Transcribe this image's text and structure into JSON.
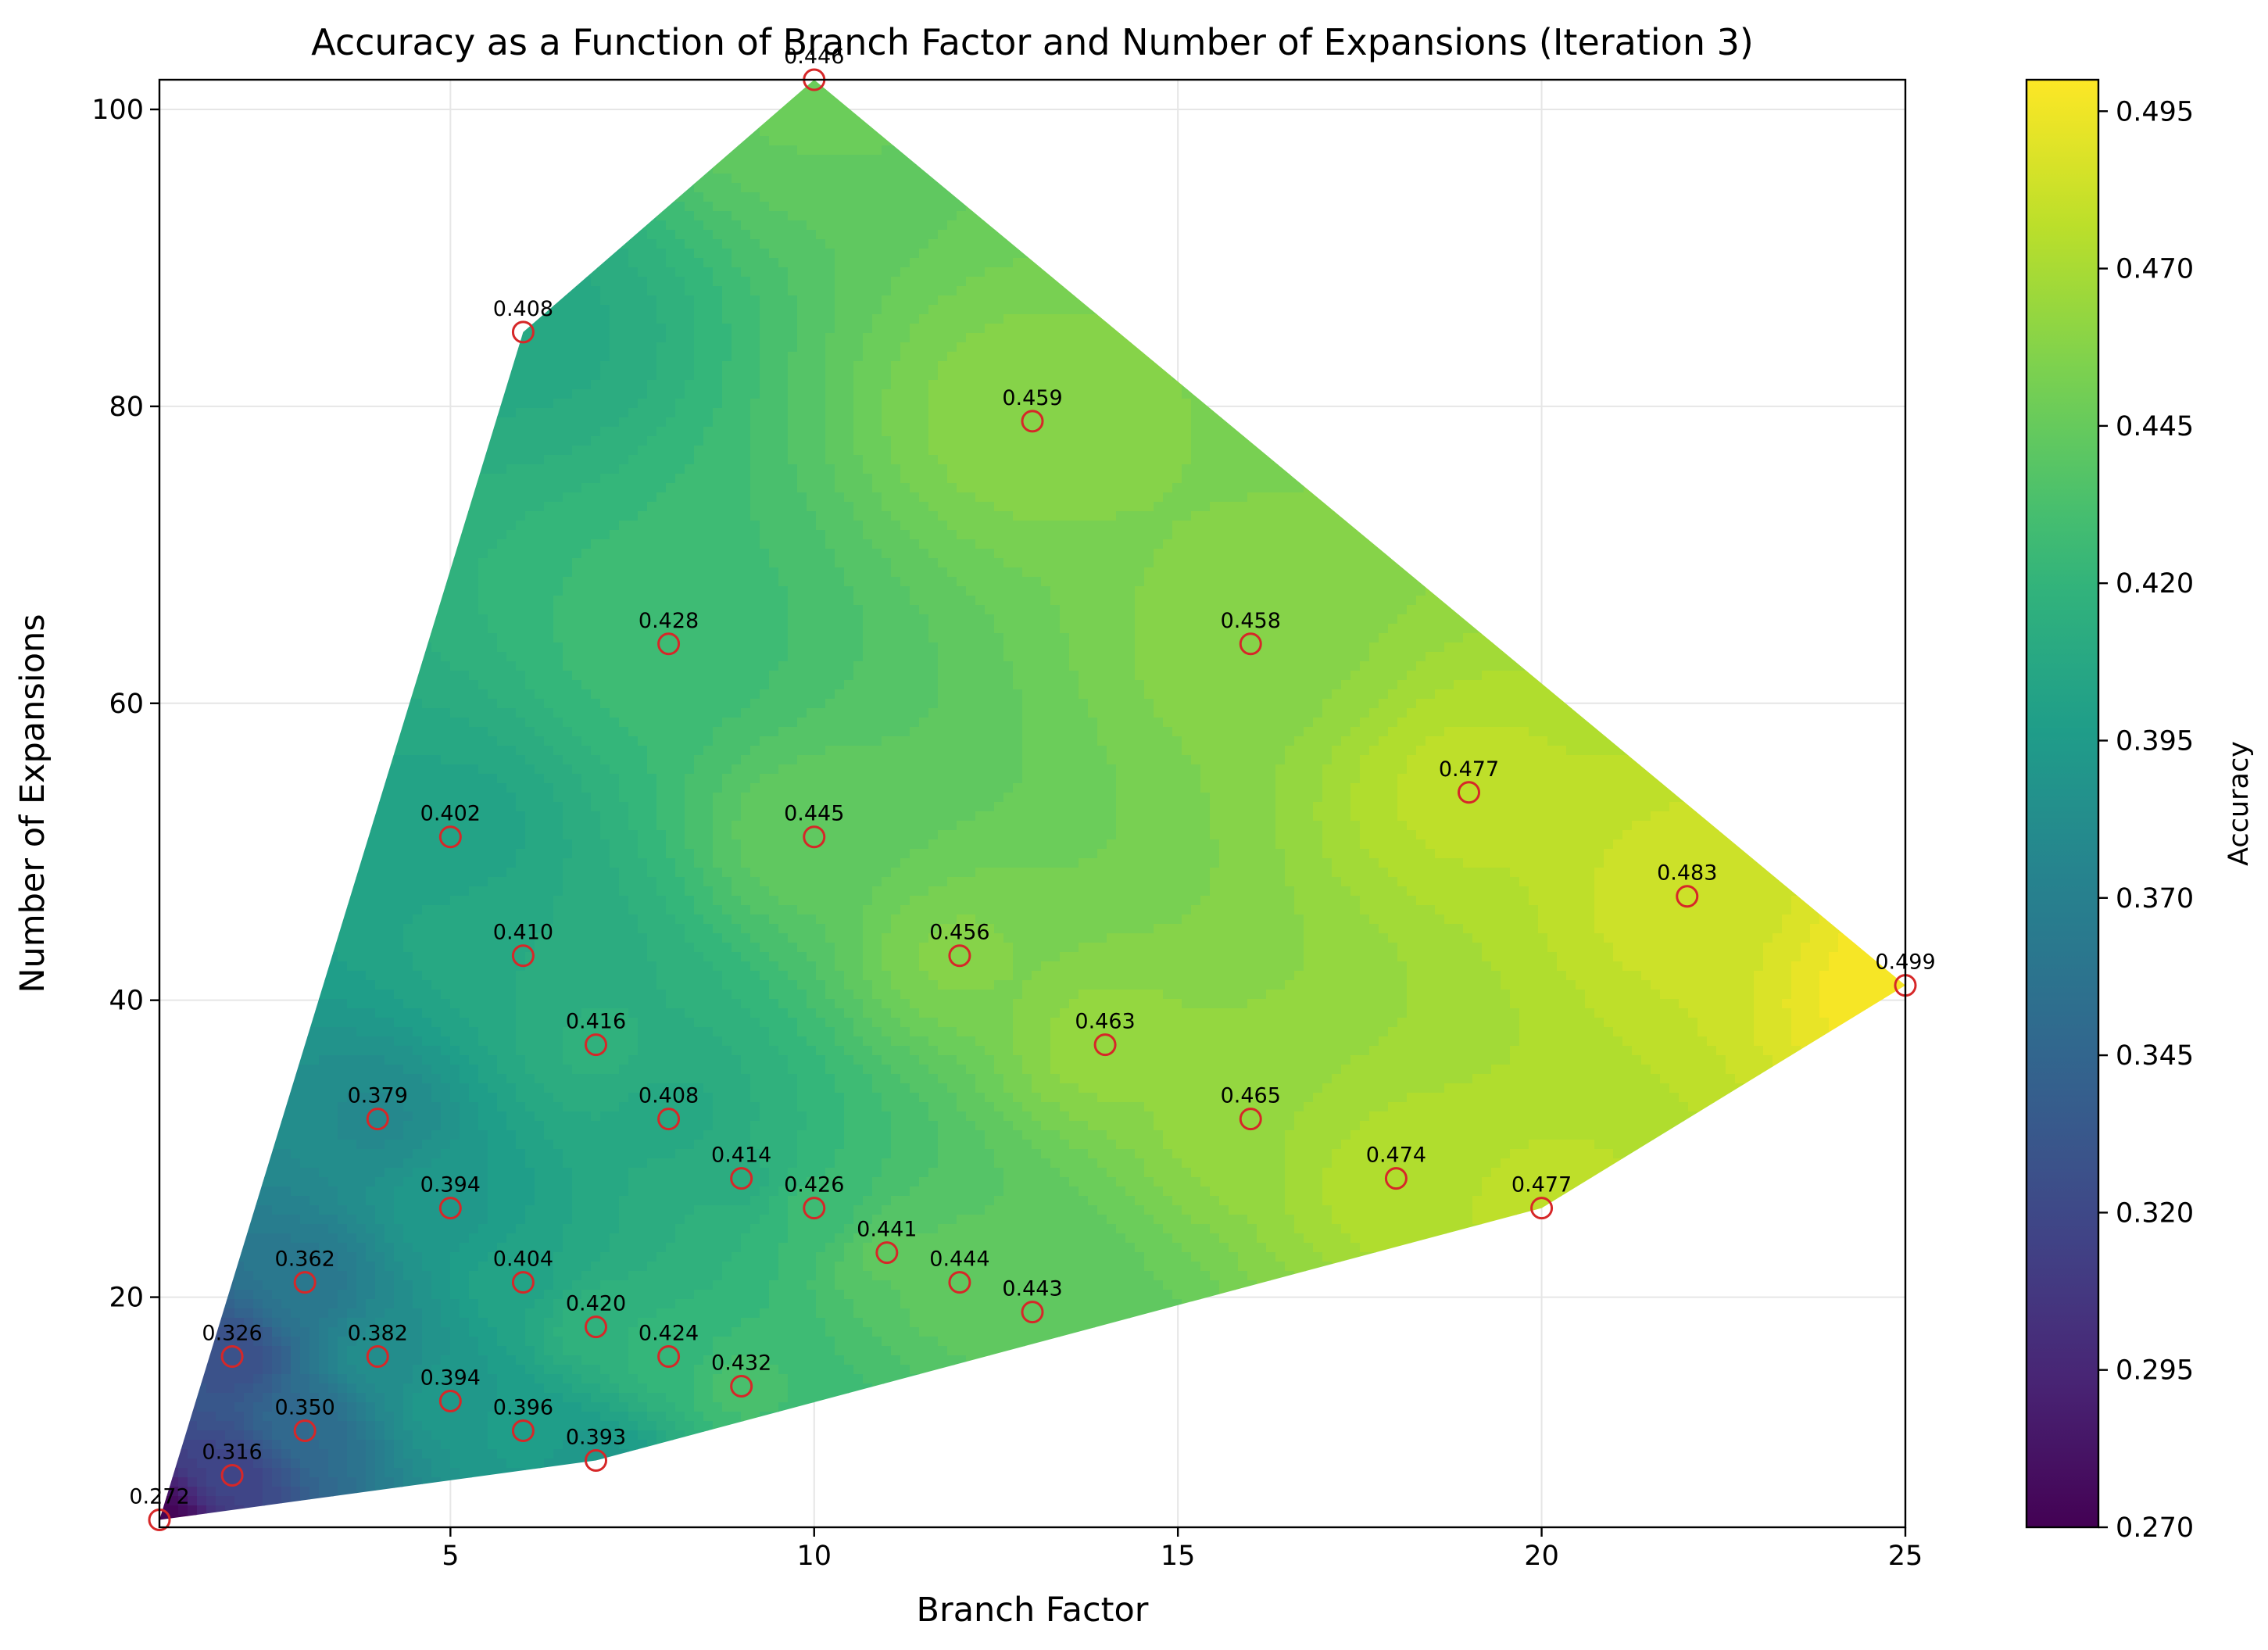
{
  "chart_data": {
    "type": "contour",
    "title": "Accuracy as a Function of Branch Factor and Number of Expansions (Iteration 3)",
    "xlabel": "Branch Factor",
    "ylabel": "Number of Expansions",
    "xlim": [
      1,
      25
    ],
    "ylim": [
      4.5,
      102
    ],
    "xticks": [
      5,
      10,
      15,
      20,
      25
    ],
    "yticks": [
      20,
      40,
      60,
      80,
      100
    ],
    "grid": true,
    "colorbar": {
      "label": "Accuracy",
      "range": [
        0.27,
        0.5
      ],
      "ticks": [
        "0.270",
        "0.295",
        "0.320",
        "0.345",
        "0.370",
        "0.395",
        "0.420",
        "0.445",
        "0.470",
        "0.495"
      ],
      "colormap": "viridis"
    },
    "marker_color": "#d62728",
    "points": [
      {
        "x": 1,
        "y": 5,
        "acc": 0.272,
        "label": "0.272"
      },
      {
        "x": 2,
        "y": 8,
        "acc": 0.316,
        "label": "0.316"
      },
      {
        "x": 2,
        "y": 16,
        "acc": 0.326,
        "label": "0.326"
      },
      {
        "x": 3,
        "y": 11,
        "acc": 0.35,
        "label": "0.350"
      },
      {
        "x": 3,
        "y": 21,
        "acc": 0.362,
        "label": "0.362"
      },
      {
        "x": 4,
        "y": 16,
        "acc": 0.382,
        "label": "0.382"
      },
      {
        "x": 4,
        "y": 32,
        "acc": 0.379,
        "label": "0.379"
      },
      {
        "x": 5,
        "y": 13,
        "acc": 0.394,
        "label": "0.394"
      },
      {
        "x": 5,
        "y": 26,
        "acc": 0.394,
        "label": "0.394"
      },
      {
        "x": 5,
        "y": 51,
        "acc": 0.402,
        "label": "0.402"
      },
      {
        "x": 6,
        "y": 11,
        "acc": 0.396,
        "label": "0.396"
      },
      {
        "x": 6,
        "y": 21,
        "acc": 0.404,
        "label": "0.404"
      },
      {
        "x": 6,
        "y": 43,
        "acc": 0.41,
        "label": "0.410"
      },
      {
        "x": 6,
        "y": 85,
        "acc": 0.408,
        "label": "0.408"
      },
      {
        "x": 7,
        "y": 9,
        "acc": 0.393,
        "label": "0.393"
      },
      {
        "x": 7,
        "y": 18,
        "acc": 0.42,
        "label": "0.420"
      },
      {
        "x": 7,
        "y": 37,
        "acc": 0.416,
        "label": "0.416"
      },
      {
        "x": 8,
        "y": 16,
        "acc": 0.424,
        "label": "0.424"
      },
      {
        "x": 8,
        "y": 32,
        "acc": 0.408,
        "label": "0.408"
      },
      {
        "x": 8,
        "y": 64,
        "acc": 0.428,
        "label": "0.428"
      },
      {
        "x": 9,
        "y": 14,
        "acc": 0.432,
        "label": "0.432"
      },
      {
        "x": 9,
        "y": 28,
        "acc": 0.414,
        "label": "0.414"
      },
      {
        "x": 10,
        "y": 26,
        "acc": 0.426,
        "label": "0.426"
      },
      {
        "x": 10,
        "y": 51,
        "acc": 0.445,
        "label": "0.445"
      },
      {
        "x": 10,
        "y": 102,
        "acc": 0.446,
        "label": "0.446"
      },
      {
        "x": 11,
        "y": 23,
        "acc": 0.441,
        "label": "0.441"
      },
      {
        "x": 12,
        "y": 21,
        "acc": 0.444,
        "label": "0.444"
      },
      {
        "x": 12,
        "y": 43,
        "acc": 0.456,
        "label": "0.456"
      },
      {
        "x": 13,
        "y": 19,
        "acc": 0.443,
        "label": "0.443"
      },
      {
        "x": 13,
        "y": 79,
        "acc": 0.459,
        "label": "0.459"
      },
      {
        "x": 14,
        "y": 37,
        "acc": 0.463,
        "label": "0.463"
      },
      {
        "x": 16,
        "y": 32,
        "acc": 0.465,
        "label": "0.465"
      },
      {
        "x": 16,
        "y": 64,
        "acc": 0.458,
        "label": "0.458"
      },
      {
        "x": 18,
        "y": 28,
        "acc": 0.474,
        "label": "0.474"
      },
      {
        "x": 19,
        "y": 54,
        "acc": 0.477,
        "label": "0.477"
      },
      {
        "x": 20,
        "y": 26,
        "acc": 0.477,
        "label": "0.477"
      },
      {
        "x": 22,
        "y": 47,
        "acc": 0.483,
        "label": "0.483"
      },
      {
        "x": 25,
        "y": 41,
        "acc": 0.499,
        "label": "0.499"
      }
    ]
  }
}
